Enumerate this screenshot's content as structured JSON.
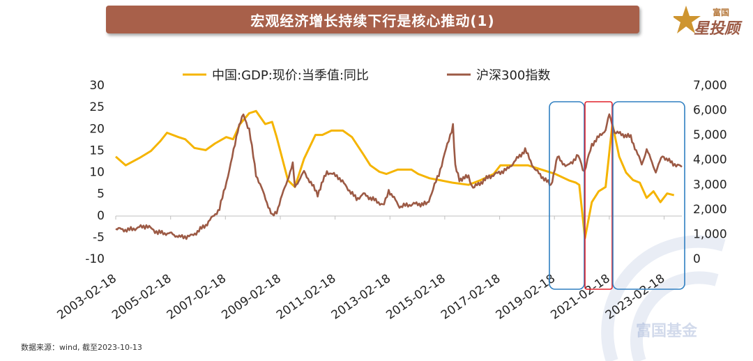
{
  "title": "宏观经济增长持续下行是核心推动(1)",
  "logo": {
    "top_text": "富国",
    "main_text": "星投顾"
  },
  "watermark": {
    "text": "富国基金"
  },
  "footer": {
    "source": "数据来源：wind, 截至2023-10-13"
  },
  "colors": {
    "gdp": "#f5b400",
    "csi300": "#9c5a45",
    "blue_box": "#2f7fc1",
    "red_box": "#e0202a",
    "title_bg": "#a8604a"
  },
  "chart_data": {
    "type": "line",
    "legend_position": "top",
    "grid": false,
    "left_axis": {
      "min": -10,
      "max": 30,
      "ticks": [
        30,
        25,
        20,
        15,
        10,
        5,
        0,
        -5,
        -10
      ],
      "tick_labels": [
        "30",
        "25",
        "20",
        "15",
        "10",
        "5",
        "0",
        "-5",
        "-10"
      ]
    },
    "right_axis": {
      "min": 0,
      "max": 7000,
      "ticks": [
        7000,
        6000,
        5000,
        4000,
        3000,
        2000,
        1000,
        0
      ],
      "tick_labels": [
        "7,000",
        "6,000",
        "5,000",
        "4,000",
        "3,000",
        "2,000",
        "1,000",
        "0"
      ]
    },
    "x_tick_labels": [
      "2003-02-18",
      "2005-02-18",
      "2007-02-18",
      "2009-02-18",
      "2011-02-18",
      "2013-02-18",
      "2015-02-18",
      "2017-02-18",
      "2019-02-18",
      "2021-02-18",
      "2023-02-18"
    ],
    "x_range": [
      "2003-02-18",
      "2023-10-13"
    ],
    "series": [
      {
        "name": "中国:GDP:现价:当季值:同比",
        "axis": "left",
        "points": [
          [
            "2003-02-18",
            13.5
          ],
          [
            "2003-07-01",
            11.5
          ],
          [
            "2004-01-01",
            13.2
          ],
          [
            "2004-06-01",
            14.8
          ],
          [
            "2004-10-01",
            17.0
          ],
          [
            "2005-01-01",
            19.0
          ],
          [
            "2005-06-01",
            18.0
          ],
          [
            "2005-09-01",
            17.5
          ],
          [
            "2006-01-01",
            15.5
          ],
          [
            "2006-06-01",
            15.0
          ],
          [
            "2006-10-01",
            16.5
          ],
          [
            "2007-03-01",
            18.0
          ],
          [
            "2007-06-01",
            17.5
          ],
          [
            "2007-09-01",
            21.0
          ],
          [
            "2008-01-01",
            23.5
          ],
          [
            "2008-04-01",
            24.0
          ],
          [
            "2008-08-01",
            21.0
          ],
          [
            "2008-11-01",
            21.5
          ],
          [
            "2009-01-01",
            18.0
          ],
          [
            "2009-06-01",
            8.0
          ],
          [
            "2009-09-01",
            6.5
          ],
          [
            "2010-01-01",
            13.0
          ],
          [
            "2010-06-01",
            18.5
          ],
          [
            "2010-09-01",
            18.5
          ],
          [
            "2011-01-01",
            19.5
          ],
          [
            "2011-06-01",
            19.5
          ],
          [
            "2011-10-01",
            18.0
          ],
          [
            "2012-03-01",
            14.0
          ],
          [
            "2012-06-01",
            11.5
          ],
          [
            "2012-10-01",
            10.0
          ],
          [
            "2013-01-01",
            9.5
          ],
          [
            "2013-06-01",
            10.5
          ],
          [
            "2013-12-01",
            10.5
          ],
          [
            "2014-03-01",
            9.5
          ],
          [
            "2014-08-01",
            8.5
          ],
          [
            "2015-01-01",
            8.0
          ],
          [
            "2015-06-01",
            7.5
          ],
          [
            "2016-01-01",
            7.0
          ],
          [
            "2016-06-01",
            8.0
          ],
          [
            "2016-12-01",
            9.5
          ],
          [
            "2017-03-01",
            11.5
          ],
          [
            "2017-09-01",
            11.5
          ],
          [
            "2018-03-01",
            11.5
          ],
          [
            "2018-09-01",
            10.5
          ],
          [
            "2019-03-01",
            9.5
          ],
          [
            "2019-09-01",
            8.0
          ],
          [
            "2019-12-01",
            7.5
          ],
          [
            "2020-01-15",
            7.0
          ],
          [
            "2020-03-31",
            -5.3
          ],
          [
            "2020-06-30",
            3.0
          ],
          [
            "2020-09-30",
            5.5
          ],
          [
            "2020-12-31",
            6.5
          ],
          [
            "2021-03-31",
            21.0
          ],
          [
            "2021-06-30",
            13.5
          ],
          [
            "2021-09-30",
            9.8
          ],
          [
            "2021-12-31",
            8.1
          ],
          [
            "2022-03-31",
            7.5
          ],
          [
            "2022-06-30",
            4.0
          ],
          [
            "2022-09-30",
            5.5
          ],
          [
            "2022-12-31",
            3.0
          ],
          [
            "2023-03-31",
            5.0
          ],
          [
            "2023-06-30",
            4.6
          ]
        ]
      },
      {
        "name": "沪深300指数",
        "axis": "right",
        "points": [
          [
            "2003-02-18",
            1200
          ],
          [
            "2003-08-01",
            1150
          ],
          [
            "2004-04-01",
            1320
          ],
          [
            "2004-09-01",
            1050
          ],
          [
            "2005-03-01",
            1000
          ],
          [
            "2005-07-01",
            860
          ],
          [
            "2005-12-01",
            920
          ],
          [
            "2006-06-01",
            1350
          ],
          [
            "2006-12-01",
            2000
          ],
          [
            "2007-05-01",
            3800
          ],
          [
            "2007-08-01",
            5200
          ],
          [
            "2007-10-16",
            5800
          ],
          [
            "2008-01-01",
            5200
          ],
          [
            "2008-04-01",
            3400
          ],
          [
            "2008-07-01",
            2700
          ],
          [
            "2008-11-04",
            1700
          ],
          [
            "2009-01-01",
            1900
          ],
          [
            "2009-04-01",
            2700
          ],
          [
            "2009-08-03",
            3800
          ],
          [
            "2009-09-01",
            2900
          ],
          [
            "2010-01-01",
            3500
          ],
          [
            "2010-07-01",
            2600
          ],
          [
            "2010-11-01",
            3500
          ],
          [
            "2011-04-01",
            3300
          ],
          [
            "2011-12-01",
            2400
          ],
          [
            "2012-03-01",
            2600
          ],
          [
            "2012-12-01",
            2150
          ],
          [
            "2013-02-01",
            2750
          ],
          [
            "2013-06-25",
            2100
          ],
          [
            "2014-01-01",
            2200
          ],
          [
            "2014-07-01",
            2200
          ],
          [
            "2014-12-01",
            3400
          ],
          [
            "2015-06-08",
            5380
          ],
          [
            "2015-07-08",
            3700
          ],
          [
            "2015-09-01",
            3200
          ],
          [
            "2016-01-01",
            3300
          ],
          [
            "2016-03-01",
            2850
          ],
          [
            "2016-10-01",
            3300
          ],
          [
            "2017-06-01",
            3600
          ],
          [
            "2018-01-24",
            4380
          ],
          [
            "2018-06-01",
            3600
          ],
          [
            "2019-01-03",
            2950
          ],
          [
            "2019-04-01",
            4100
          ],
          [
            "2019-08-01",
            3700
          ],
          [
            "2020-01-01",
            4150
          ],
          [
            "2020-03-23",
            3500
          ],
          [
            "2020-07-01",
            4600
          ],
          [
            "2020-12-31",
            5200
          ],
          [
            "2021-02-18",
            5800
          ],
          [
            "2021-05-01",
            5100
          ],
          [
            "2021-12-01",
            4900
          ],
          [
            "2022-04-26",
            3800
          ],
          [
            "2022-07-01",
            4400
          ],
          [
            "2022-10-31",
            3500
          ],
          [
            "2023-01-27",
            4150
          ],
          [
            "2023-06-01",
            3850
          ],
          [
            "2023-10-13",
            3700
          ]
        ]
      }
    ],
    "annotation_boxes": [
      {
        "color": "blue",
        "from": "2019-02-18",
        "to": "2020-05-01"
      },
      {
        "color": "red",
        "from": "2020-05-01",
        "to": "2021-05-01"
      },
      {
        "color": "blue",
        "from": "2021-05-01",
        "to": "2023-10-13"
      }
    ]
  }
}
